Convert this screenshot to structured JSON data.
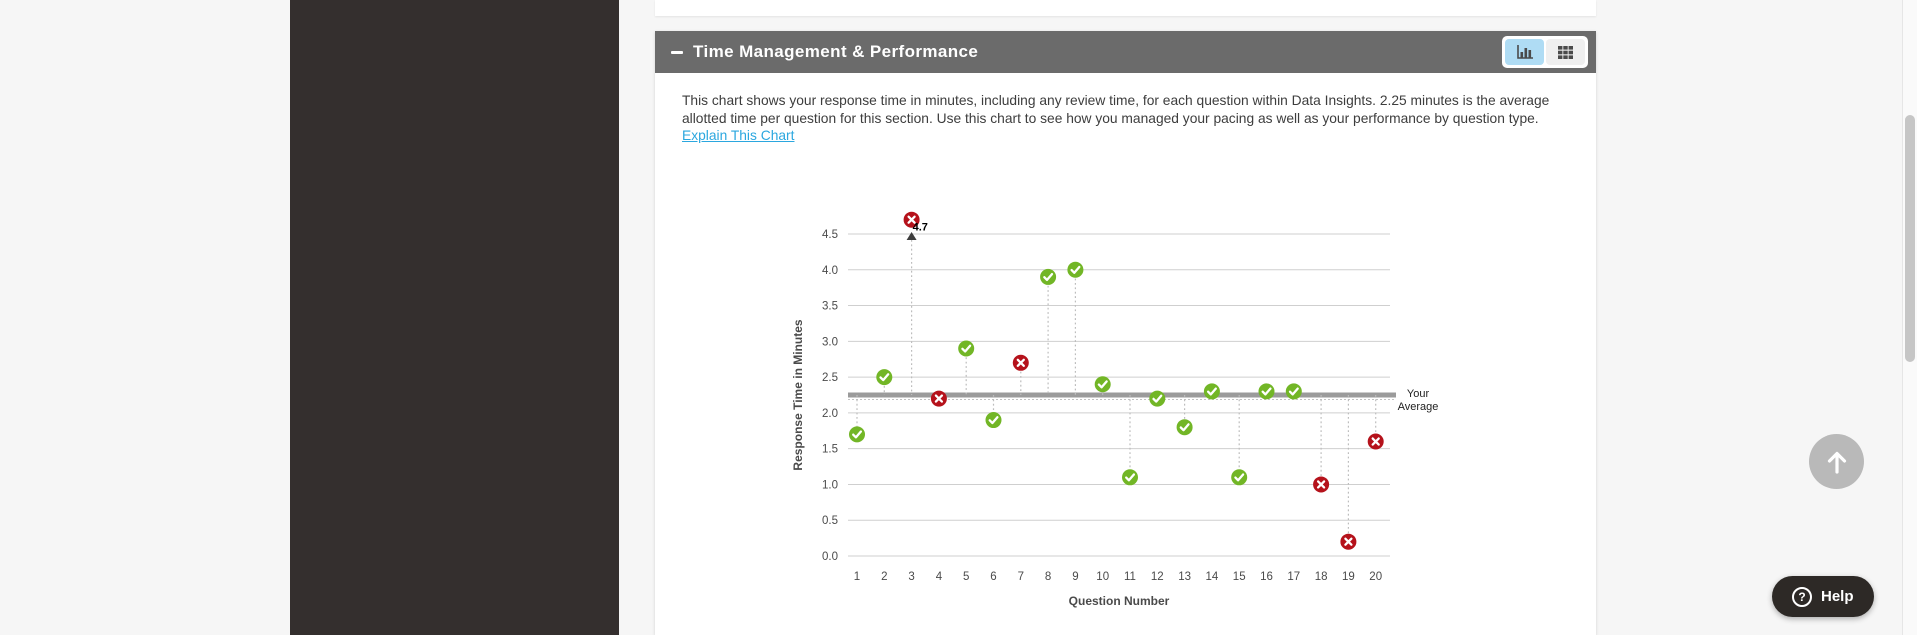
{
  "page": {
    "help_label": "Help",
    "help_icon_glyph": "?"
  },
  "section": {
    "title": "Time Management & Performance",
    "description": "This chart shows your response time in minutes, including any review time, for each question within Data Insights. 2.25 minutes is the average allotted time per question for this section. Use this chart to see how you managed your pacing as well as your performance by question type.",
    "link_label": "Explain This Chart"
  },
  "chart_data": {
    "type": "scatter",
    "xlabel": "Question Number",
    "ylabel": "Response Time in Minutes",
    "ylim": [
      0,
      4.5
    ],
    "ytick_step": 0.5,
    "average": 2.25,
    "average_label_line1": "Your",
    "average_label_line2": "Average",
    "grid": true,
    "points": [
      {
        "q": 1,
        "minutes": 1.7,
        "correct": true
      },
      {
        "q": 2,
        "minutes": 2.5,
        "correct": true
      },
      {
        "q": 3,
        "minutes": 4.7,
        "correct": false,
        "label": "4.7",
        "offscale": true
      },
      {
        "q": 4,
        "minutes": 2.2,
        "correct": false
      },
      {
        "q": 5,
        "minutes": 2.9,
        "correct": true
      },
      {
        "q": 6,
        "minutes": 1.9,
        "correct": true
      },
      {
        "q": 7,
        "minutes": 2.7,
        "correct": false
      },
      {
        "q": 8,
        "minutes": 3.9,
        "correct": true
      },
      {
        "q": 9,
        "minutes": 4.0,
        "correct": true
      },
      {
        "q": 10,
        "minutes": 2.4,
        "correct": true
      },
      {
        "q": 11,
        "minutes": 1.1,
        "correct": true
      },
      {
        "q": 12,
        "minutes": 2.2,
        "correct": true
      },
      {
        "q": 13,
        "minutes": 1.8,
        "correct": true
      },
      {
        "q": 14,
        "minutes": 2.3,
        "correct": true
      },
      {
        "q": 15,
        "minutes": 1.1,
        "correct": true
      },
      {
        "q": 16,
        "minutes": 2.3,
        "correct": true
      },
      {
        "q": 17,
        "minutes": 2.3,
        "correct": true
      },
      {
        "q": 18,
        "minutes": 1.0,
        "correct": false
      },
      {
        "q": 19,
        "minutes": 0.2,
        "correct": false
      },
      {
        "q": 20,
        "minutes": 1.6,
        "correct": false
      }
    ]
  },
  "colors": {
    "header-bg": "#6B6B6B",
    "sidebar-bg": "#342F2E",
    "link": "#2BA7DF",
    "correct": "#72B626",
    "incorrect": "#B5121B",
    "average-line": "#9B9B9B",
    "toggle-active-bg": "#AFDCF4",
    "help-bg": "#2D2926"
  }
}
